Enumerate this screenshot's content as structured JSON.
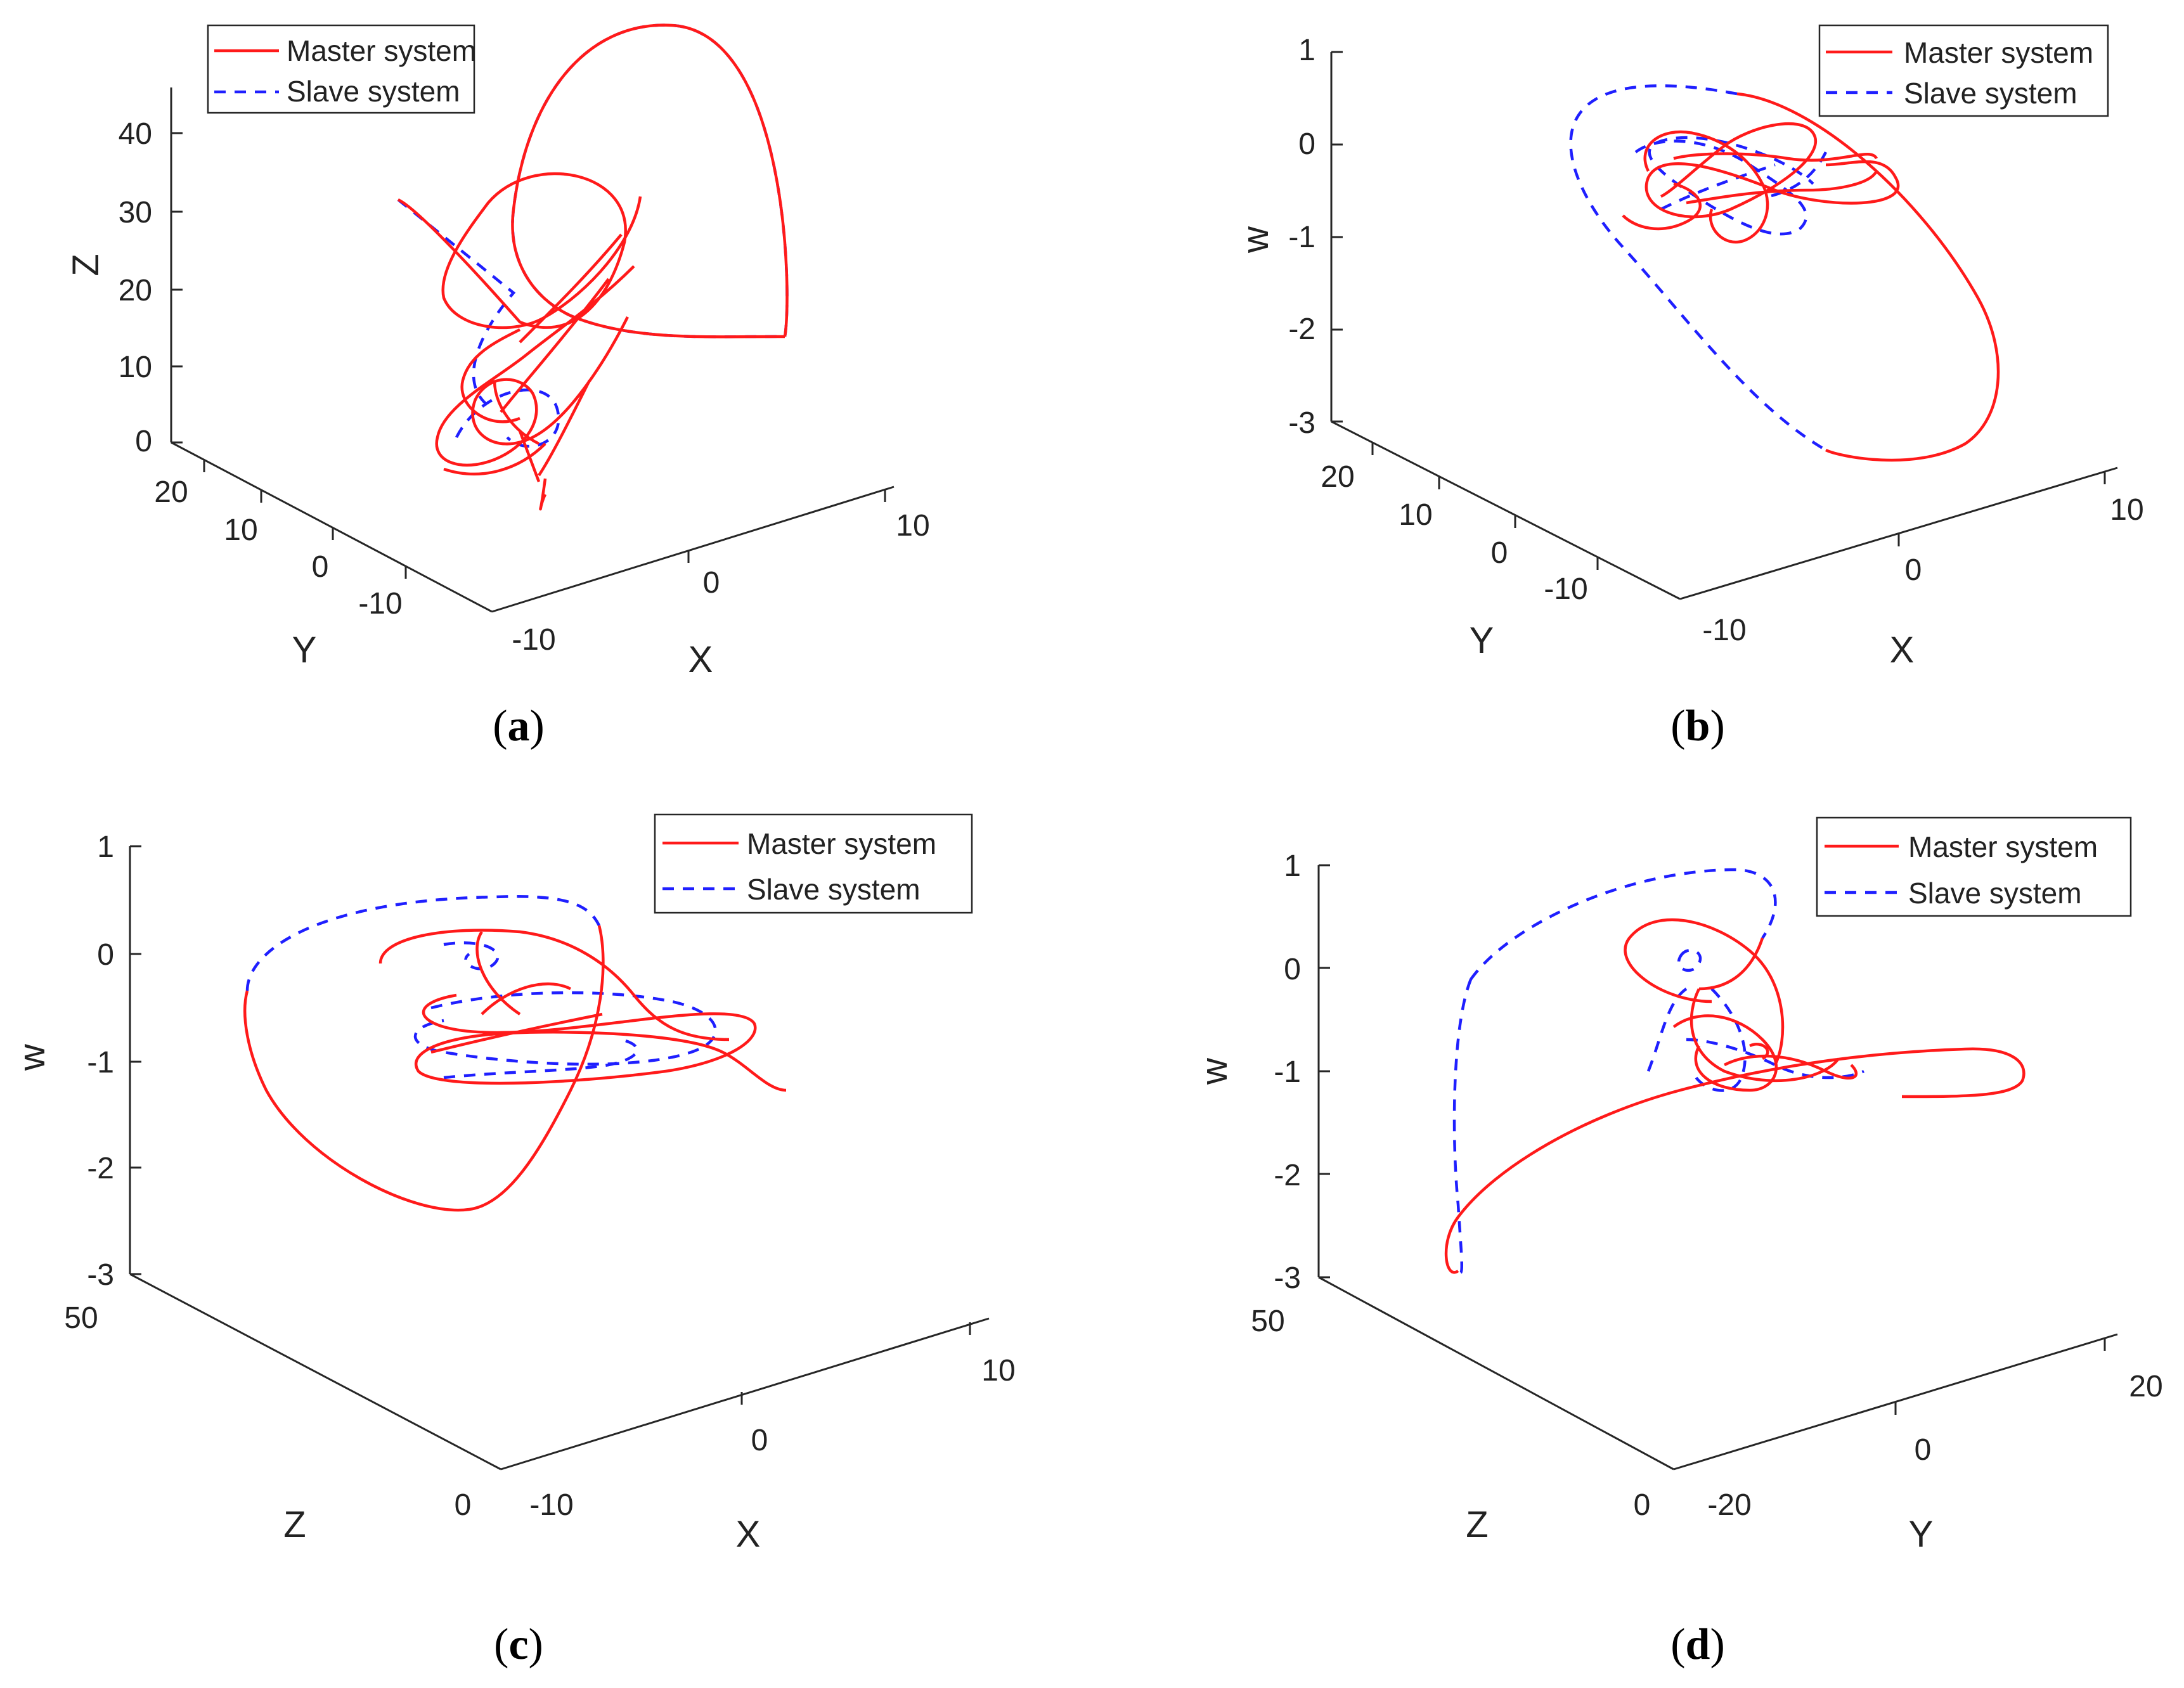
{
  "chart_data": [
    {
      "type": "line3d",
      "panel": "a",
      "caption": "(a)",
      "xlabel": "X",
      "ylabel": "Y",
      "zlabel": "Z",
      "x_ticks": [
        "-10",
        "0",
        "10"
      ],
      "y_ticks": [
        "20",
        "10",
        "0",
        "-10"
      ],
      "z_ticks": [
        "40",
        "30",
        "20",
        "10",
        "0"
      ],
      "legend": [
        "Master system",
        "Slave system"
      ],
      "series": [
        {
          "name": "Master system",
          "style": "solid red"
        },
        {
          "name": "Slave system",
          "style": "dashed blue"
        }
      ]
    },
    {
      "type": "line3d",
      "panel": "b",
      "caption": "(b)",
      "xlabel": "X",
      "ylabel": "Y",
      "zlabel": "w",
      "x_ticks": [
        "-10",
        "0",
        "10"
      ],
      "y_ticks": [
        "20",
        "10",
        "0",
        "-10"
      ],
      "z_ticks": [
        "1",
        "0",
        "-1",
        "-2",
        "-3"
      ],
      "legend": [
        "Master system",
        "Slave system"
      ],
      "series": [
        {
          "name": "Master system",
          "style": "solid red"
        },
        {
          "name": "Slave system",
          "style": "dashed blue"
        }
      ]
    },
    {
      "type": "line3d",
      "panel": "c",
      "caption": "(c)",
      "xlabel": "X",
      "ylabel": "Z",
      "zlabel": "w",
      "x_ticks": [
        "-10",
        "0",
        "10"
      ],
      "y_ticks": [
        "50",
        "0"
      ],
      "z_ticks": [
        "1",
        "0",
        "-1",
        "-2",
        "-3"
      ],
      "legend": [
        "Master system",
        "Slave system"
      ],
      "series": [
        {
          "name": "Master system",
          "style": "solid red"
        },
        {
          "name": "Slave system",
          "style": "dashed blue"
        }
      ]
    },
    {
      "type": "line3d",
      "panel": "d",
      "caption": "(d)",
      "xlabel": "Y",
      "ylabel": "Z",
      "zlabel": "w",
      "x_ticks": [
        "-20",
        "0",
        "20"
      ],
      "y_ticks": [
        "50",
        "0"
      ],
      "z_ticks": [
        "1",
        "0",
        "-1",
        "-2",
        "-3"
      ],
      "legend": [
        "Master system",
        "Slave system"
      ],
      "series": [
        {
          "name": "Master system",
          "style": "solid red"
        },
        {
          "name": "Slave system",
          "style": "dashed blue"
        }
      ]
    }
  ],
  "colors": {
    "master": "#ff1a1a",
    "slave": "#1f1fff"
  }
}
